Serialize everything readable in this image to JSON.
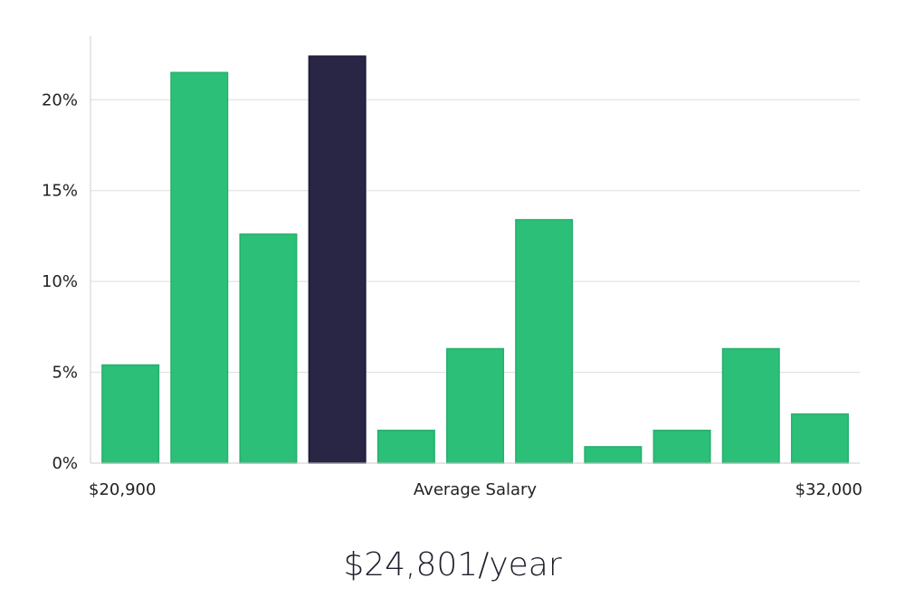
{
  "chart_data": {
    "type": "bar",
    "title": "",
    "xlabel": "Average Salary",
    "ylabel": "",
    "x_start_label": "$20,900",
    "x_end_label": "$32,000",
    "ylim": [
      0,
      23.5
    ],
    "yticks": [
      0,
      5,
      10,
      15,
      20
    ],
    "ytick_labels": [
      "0%",
      "5%",
      "10%",
      "15%",
      "20%"
    ],
    "values": [
      5.4,
      21.5,
      12.6,
      22.4,
      1.8,
      6.3,
      13.4,
      0.9,
      1.8,
      6.3,
      2.7
    ],
    "highlight_index": 3,
    "colors": {
      "bar": "#2bbf78",
      "highlight": "#282545",
      "grid": "#dddddd"
    }
  },
  "salary": {
    "value": "$24,801/year"
  }
}
